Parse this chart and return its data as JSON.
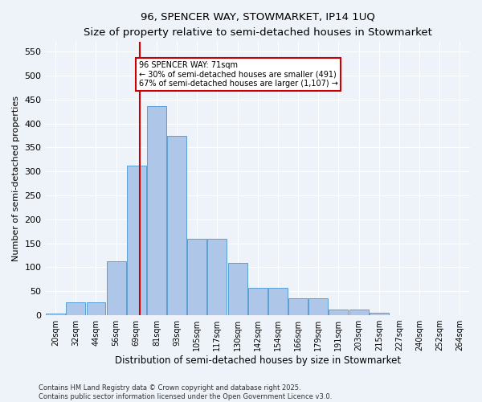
{
  "title": "96, SPENCER WAY, STOWMARKET, IP14 1UQ",
  "subtitle": "Size of property relative to semi-detached houses in Stowmarket",
  "xlabel": "Distribution of semi-detached houses by size in Stowmarket",
  "ylabel": "Number of semi-detached properties",
  "property_size": 71,
  "property_label": "96 SPENCER WAY: 71sqm",
  "pct_smaller": 30,
  "pct_larger": 67,
  "count_smaller": 491,
  "count_larger": 1107,
  "tick_labels": [
    "20sqm",
    "32sqm",
    "44sqm",
    "56sqm",
    "69sqm",
    "81sqm",
    "93sqm",
    "105sqm",
    "117sqm",
    "130sqm",
    "142sqm",
    "154sqm",
    "166sqm",
    "179sqm",
    "191sqm",
    "203sqm",
    "215sqm",
    "227sqm",
    "240sqm",
    "252sqm",
    "264sqm"
  ],
  "bar_heights": [
    3,
    27,
    27,
    112,
    312,
    437,
    374,
    160,
    160,
    110,
    57,
    57,
    36,
    36,
    12,
    12,
    5,
    0,
    0,
    0,
    0
  ],
  "bar_color": "#aec6e8",
  "bar_edge_color": "#5a9fd4",
  "vline_color": "#cc0000",
  "ylim": [
    0,
    570
  ],
  "yticks": [
    0,
    50,
    100,
    150,
    200,
    250,
    300,
    350,
    400,
    450,
    500,
    550
  ],
  "annotation_box_color": "#cc0000",
  "footer_line1": "Contains HM Land Registry data © Crown copyright and database right 2025.",
  "footer_line2": "Contains public sector information licensed under the Open Government Licence v3.0.",
  "bg_color": "#eef2f9",
  "grid_color": "#ffffff"
}
